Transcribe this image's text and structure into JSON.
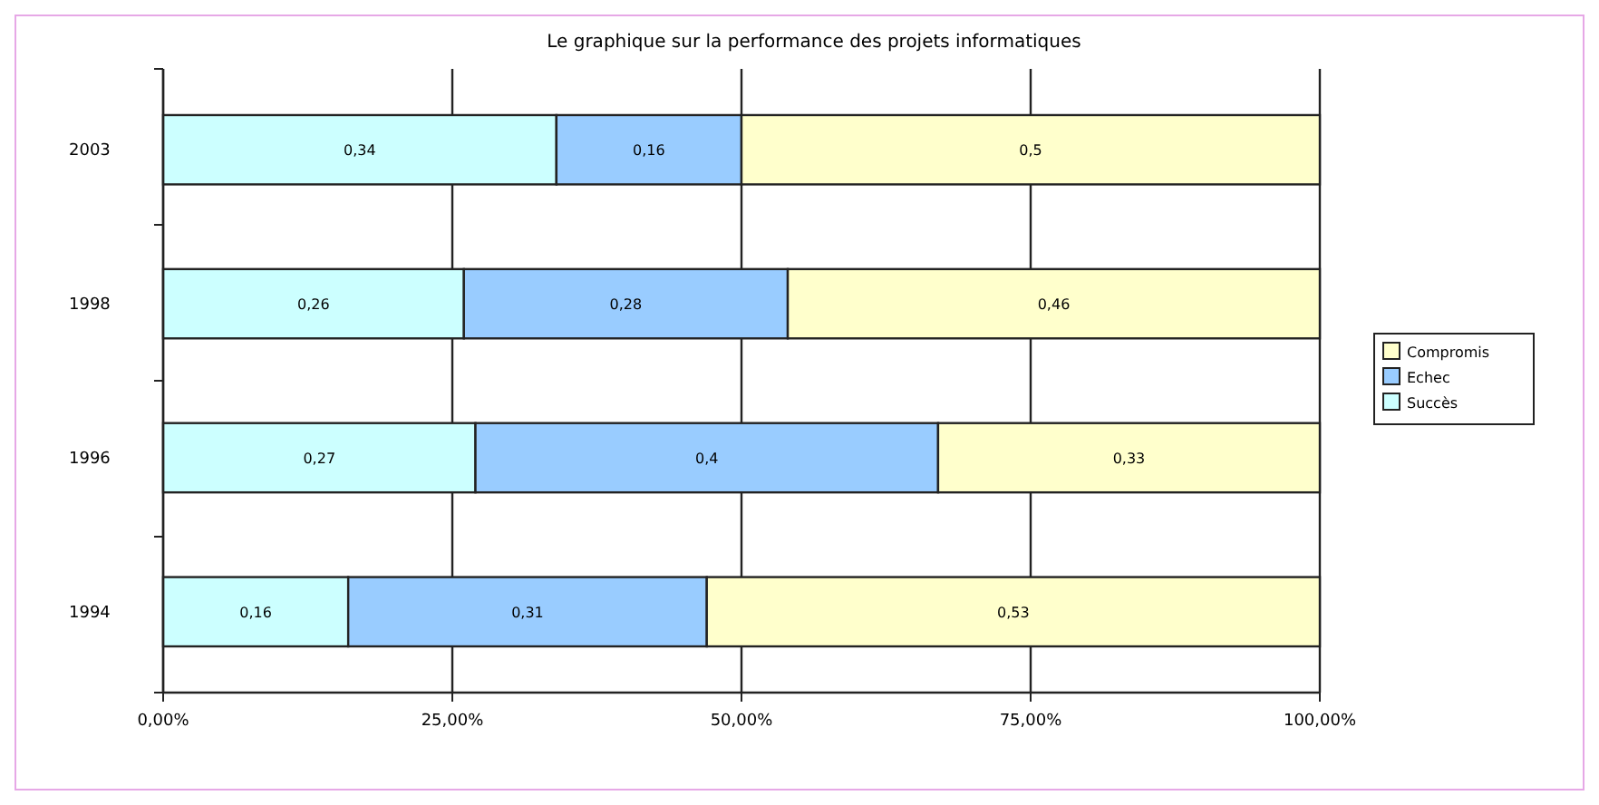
{
  "chart_data": {
    "type": "bar",
    "orientation": "horizontal",
    "stacked": true,
    "title": "Le graphique sur la performance des projets informatiques",
    "categories": [
      "2003",
      "1998",
      "1996",
      "1994"
    ],
    "series": [
      {
        "name": "Succès",
        "color": "#ccffff",
        "values": [
          0.34,
          0.26,
          0.27,
          0.16
        ],
        "value_labels": [
          "0,34",
          "0,26",
          "0,27",
          "0,16"
        ]
      },
      {
        "name": "Echec",
        "color": "#99ccff",
        "values": [
          0.16,
          0.28,
          0.4,
          0.31
        ],
        "value_labels": [
          "0,16",
          "0,28",
          "0,4",
          "0,31"
        ]
      },
      {
        "name": "Compromis",
        "color": "#ffffcc",
        "values": [
          0.5,
          0.46,
          0.33,
          0.53
        ],
        "value_labels": [
          "0,5",
          "0,46",
          "0,33",
          "0,53"
        ]
      }
    ],
    "xlim": [
      0,
      1
    ],
    "xticks": [
      {
        "value": 0,
        "label": "0,00%"
      },
      {
        "value": 0.25,
        "label": "25,00%"
      },
      {
        "value": 0.5,
        "label": "50,00%"
      },
      {
        "value": 0.75,
        "label": "75,00%"
      },
      {
        "value": 1,
        "label": "100,00%"
      }
    ],
    "grid": "x",
    "legend": "right"
  }
}
